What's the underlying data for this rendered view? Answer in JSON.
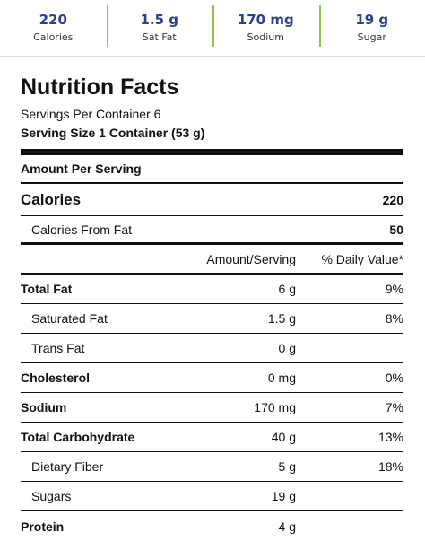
{
  "summary": [
    {
      "value": "220",
      "label": "Calories"
    },
    {
      "value": "1.5 g",
      "label": "Sat Fat"
    },
    {
      "value": "170 mg",
      "label": "Sodium"
    },
    {
      "value": "19 g",
      "label": "Sugar"
    }
  ],
  "label": {
    "title": "Nutrition Facts",
    "servings_per_container": "Servings Per Container 6",
    "serving_size": "Serving Size 1 Container (53 g)",
    "amount_per_serving": "Amount Per Serving",
    "calories_label": "Calories",
    "calories_value": "220",
    "calories_from_fat_label": "Calories From Fat",
    "calories_from_fat_value": "50",
    "col_amount": "Amount/Serving",
    "col_dv": "% Daily Value*"
  },
  "nutrients": [
    {
      "name": "Total Fat",
      "amount": "6 g",
      "dv": "9%"
    },
    {
      "name": "Saturated Fat",
      "amount": "1.5 g",
      "dv": "8%"
    },
    {
      "name": "Trans Fat",
      "amount": "0 g",
      "dv": ""
    },
    {
      "name": "Cholesterol",
      "amount": "0 mg",
      "dv": "0%"
    },
    {
      "name": "Sodium",
      "amount": "170 mg",
      "dv": "7%"
    },
    {
      "name": "Total Carbohydrate",
      "amount": "40 g",
      "dv": "13%"
    },
    {
      "name": "Dietary Fiber",
      "amount": "5 g",
      "dv": "18%"
    },
    {
      "name": "Sugars",
      "amount": "19 g",
      "dv": ""
    },
    {
      "name": "Protein",
      "amount": "4 g",
      "dv": ""
    }
  ],
  "colors": {
    "accent_value": "#2d3f8e",
    "divider": "#8cc34a"
  }
}
